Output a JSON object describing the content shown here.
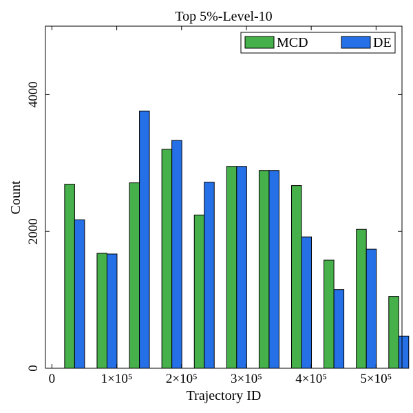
{
  "chart_data": {
    "type": "bar",
    "title": "Top 5%-Level-10",
    "xlabel": "Trajectory ID",
    "ylabel": "Count",
    "ylim": [
      0,
      5000
    ],
    "xlim": [
      -10000,
      540000
    ],
    "yticks": [
      {
        "value": 0,
        "label": "0"
      },
      {
        "value": 2000,
        "label": "2000"
      },
      {
        "value": 4000,
        "label": "4000"
      }
    ],
    "xticks": [
      {
        "value": 0,
        "label": "0"
      },
      {
        "value": 100000,
        "label": "1×10⁵"
      },
      {
        "value": 200000,
        "label": "2×10⁵"
      },
      {
        "value": 300000,
        "label": "3×10⁵"
      },
      {
        "value": 400000,
        "label": "4×10⁵"
      },
      {
        "value": 500000,
        "label": "5×10⁵"
      }
    ],
    "bin_centers": [
      35000,
      85000,
      135000,
      185000,
      235000,
      285000,
      335000,
      385000,
      435000,
      485000,
      535000
    ],
    "series": [
      {
        "name": "MCD",
        "color": "#46b04a",
        "values": [
          2690,
          1680,
          2710,
          3200,
          2240,
          2950,
          2890,
          2670,
          1580,
          2030,
          1050
        ]
      },
      {
        "name": "DE",
        "color": "#2570e6",
        "values": [
          2170,
          1670,
          3760,
          3330,
          2720,
          2950,
          2890,
          1920,
          1150,
          1740,
          470
        ]
      }
    ],
    "legend_position": "top-right",
    "grid": false
  }
}
